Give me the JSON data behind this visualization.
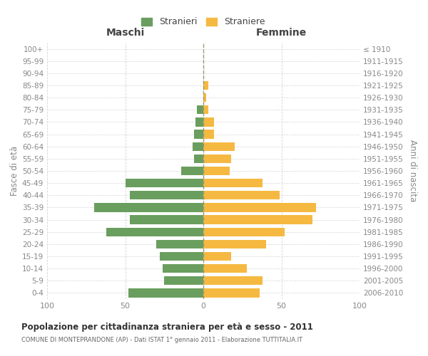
{
  "age_groups": [
    "0-4",
    "5-9",
    "10-14",
    "15-19",
    "20-24",
    "25-29",
    "30-34",
    "35-39",
    "40-44",
    "45-49",
    "50-54",
    "55-59",
    "60-64",
    "65-69",
    "70-74",
    "75-79",
    "80-84",
    "85-89",
    "90-94",
    "95-99",
    "100+"
  ],
  "birth_years": [
    "2006-2010",
    "2001-2005",
    "1996-2000",
    "1991-1995",
    "1986-1990",
    "1981-1985",
    "1976-1980",
    "1971-1975",
    "1966-1970",
    "1961-1965",
    "1956-1960",
    "1951-1955",
    "1946-1950",
    "1941-1945",
    "1936-1940",
    "1931-1935",
    "1926-1930",
    "1921-1925",
    "1916-1920",
    "1911-1915",
    "≤ 1910"
  ],
  "maschi": [
    48,
    25,
    26,
    28,
    30,
    62,
    47,
    70,
    47,
    50,
    14,
    6,
    7,
    6,
    5,
    4,
    0,
    0,
    0,
    0,
    0
  ],
  "femmine": [
    36,
    38,
    28,
    18,
    40,
    52,
    70,
    72,
    49,
    38,
    17,
    18,
    20,
    7,
    7,
    3,
    2,
    3,
    0,
    0,
    0
  ],
  "color_maschi": "#6a9e5e",
  "color_femmine": "#f5b942",
  "title": "Popolazione per cittadinanza straniera per età e sesso - 2011",
  "subtitle": "COMUNE DI MONTEPRANDONE (AP) - Dati ISTAT 1° gennaio 2011 - Elaborazione TUTTITALIA.IT",
  "label_maschi": "Maschi",
  "label_femmine": "Femmine",
  "ylabel_left": "Fasce di età",
  "ylabel_right": "Anni di nascita",
  "legend_maschi": "Stranieri",
  "legend_femmine": "Straniere",
  "xlim": 100,
  "background_color": "#ffffff",
  "grid_color": "#d0d0d0"
}
